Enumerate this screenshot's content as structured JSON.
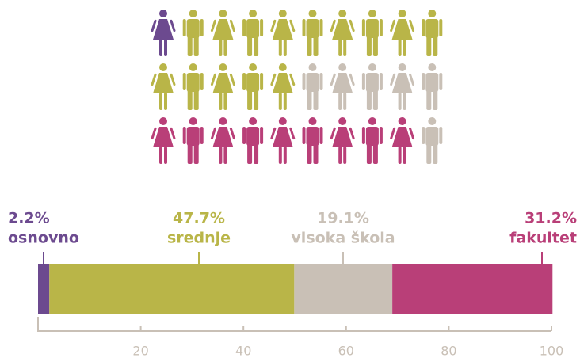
{
  "chart_data": {
    "type": "stacked-bar",
    "categories": [
      "osnovno",
      "srednje",
      "visoka škola",
      "fakultet"
    ],
    "values": [
      2.2,
      47.7,
      19.1,
      31.2
    ],
    "value_labels": [
      "2.2%",
      "47.7%",
      "19.1%",
      "31.2%"
    ],
    "colors": [
      "#6c4a8f",
      "#b9b548",
      "#c9c0b6",
      "#b93f78"
    ],
    "xlim": [
      0,
      100
    ],
    "xticks": [
      20,
      40,
      60,
      80,
      100
    ],
    "icons": [
      "#6c4a8f",
      "#b9b548",
      "#b9b548",
      "#b9b548",
      "#b9b548",
      "#b9b548",
      "#b9b548",
      "#b9b548",
      "#b9b548",
      "#b9b548",
      "#b9b548",
      "#b9b548",
      "#b9b548",
      "#b9b548",
      "#b9b548",
      "#c9c0b6",
      "#c9c0b6",
      "#c9c0b6",
      "#c9c0b6",
      "#c9c0b6",
      "#b93f78",
      "#b93f78",
      "#b93f78",
      "#b93f78",
      "#b93f78",
      "#b93f78",
      "#b93f78",
      "#b93f78",
      "#b93f78",
      "#c9c0b6"
    ]
  }
}
